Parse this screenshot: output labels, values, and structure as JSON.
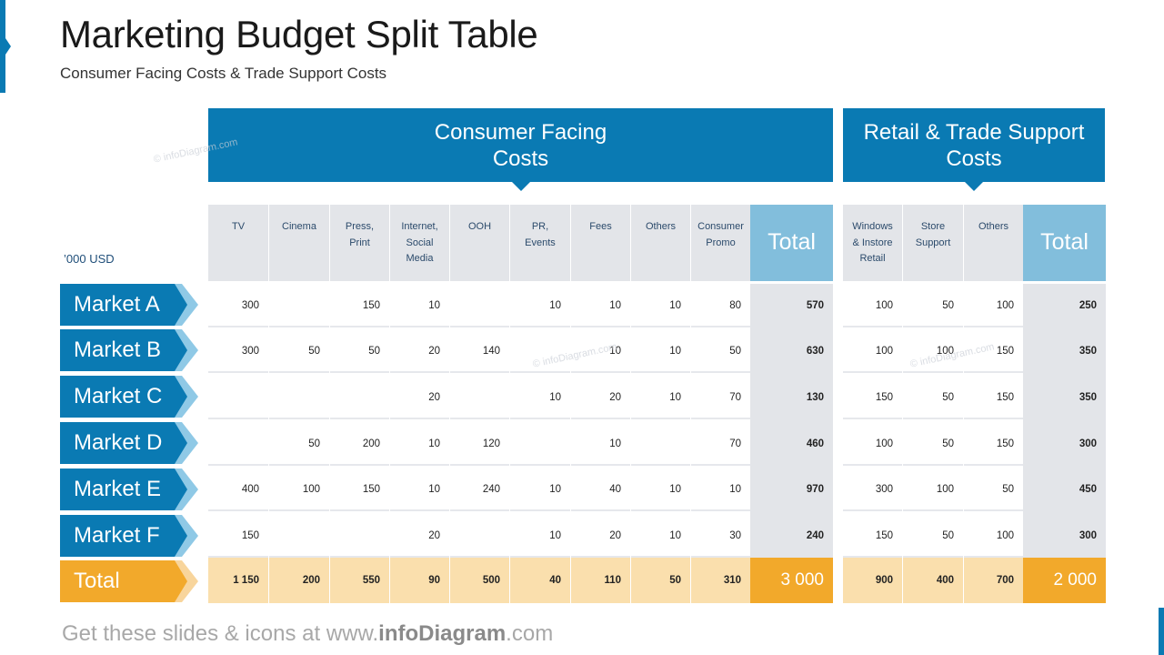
{
  "title": "Marketing Budget Split Table",
  "subtitle": "Consumer  Facing Costs & Trade Support Costs",
  "unit_label": "’000 USD",
  "groups": {
    "consumer": "Consumer Facing\nCosts",
    "retail": "Retail & Trade Support\nCosts"
  },
  "columns": {
    "consumer": [
      "TV",
      "Cinema",
      "Press,\nPrint",
      "Internet,\nSocial\nMedia",
      "OOH",
      "PR,\nEvents",
      "Fees",
      "Others",
      "Consumer\nPromo"
    ],
    "consumer_total": "Total",
    "retail": [
      "Windows\n& Instore\nRetail",
      "Store\nSupport",
      "Others"
    ],
    "retail_total": "Total"
  },
  "markets": [
    "Market A",
    "Market B",
    "Market C",
    "Market D",
    "Market E",
    "Market F"
  ],
  "consumer_values": [
    [
      "300",
      "",
      "150",
      "10",
      "",
      "10",
      "10",
      "10",
      "80"
    ],
    [
      "300",
      "50",
      "50",
      "20",
      "140",
      "",
      "10",
      "10",
      "50"
    ],
    [
      "",
      "",
      "",
      "20",
      "",
      "10",
      "20",
      "10",
      "70"
    ],
    [
      "",
      "50",
      "200",
      "10",
      "120",
      "",
      "10",
      "",
      "70"
    ],
    [
      "400",
      "100",
      "150",
      "10",
      "240",
      "10",
      "40",
      "10",
      "10"
    ],
    [
      "150",
      "",
      "",
      "20",
      "",
      "10",
      "20",
      "10",
      "30"
    ]
  ],
  "consumer_totals": [
    "570",
    "630",
    "130",
    "460",
    "970",
    "240"
  ],
  "retail_values": [
    [
      "100",
      "50",
      "100"
    ],
    [
      "100",
      "100",
      "150"
    ],
    [
      "150",
      "50",
      "150"
    ],
    [
      "100",
      "50",
      "150"
    ],
    [
      "300",
      "100",
      "50"
    ],
    [
      "150",
      "50",
      "100"
    ]
  ],
  "retail_totals": [
    "250",
    "350",
    "350",
    "300",
    "450",
    "300"
  ],
  "total_row": {
    "label": "Total",
    "consumer": [
      "1 150",
      "200",
      "550",
      "90",
      "500",
      "40",
      "110",
      "50",
      "310"
    ],
    "consumer_total": "3 000",
    "retail": [
      "900",
      "400",
      "700"
    ],
    "retail_total": "2 000"
  },
  "watermark": "© infoDiagram.com",
  "footer": {
    "prefix": "Get these slides & icons at www.",
    "brand": "infoDiagram",
    "suffix": ".com"
  },
  "colors": {
    "accent_blue": "#0a7ab3",
    "light_blue": "#82bedc",
    "header_gray": "#e3e5e9",
    "total_orange": "#f2a92b",
    "total_light_orange": "#fadfad"
  }
}
